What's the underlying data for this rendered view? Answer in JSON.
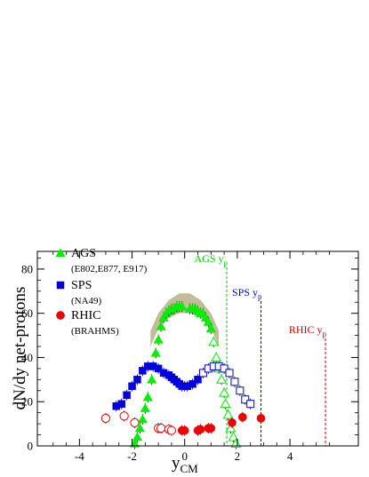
{
  "chart_data": {
    "type": "scatter",
    "xlabel_main": "y",
    "xlabel_sub": "CM",
    "ylabel": "dN/dy net-protons",
    "xlim": [
      -5.6,
      6.6
    ],
    "ylim": [
      0,
      88
    ],
    "xticks": [
      "-4",
      "-2",
      "0",
      "2",
      "4"
    ],
    "xtick_values": [
      -4,
      -2,
      0,
      2,
      4
    ],
    "yticks": [
      "0",
      "20",
      "40",
      "60",
      "80"
    ],
    "ytick_values": [
      0,
      20,
      40,
      60,
      80
    ],
    "legend": [
      {
        "name": "AGS",
        "sub": "(E802,E877, E917)",
        "color": "#00ee00",
        "marker": "triangle"
      },
      {
        "name": "SPS",
        "sub": "(NA49)",
        "color": "#0000dd",
        "marker": "square"
      },
      {
        "name": "RHIC",
        "sub": "(BRAHMS)",
        "color": "#ee0000",
        "marker": "circle"
      }
    ],
    "beam_lines": [
      {
        "label_main": "AGS y",
        "label_sub": "p",
        "x": 1.6,
        "color": "#00cc00"
      },
      {
        "label_main": "SPS y",
        "label_sub": "p",
        "x": 2.9,
        "color": "#0000cc"
      },
      {
        "label_main": "RHIC y",
        "label_sub": "p",
        "x": 5.35,
        "color": "#cc0000"
      }
    ],
    "ags_band": {
      "color": "#b8b08a",
      "upper": [
        [
          -1.3,
          52
        ],
        [
          -1.0,
          60
        ],
        [
          -0.6,
          66
        ],
        [
          -0.2,
          69
        ],
        [
          0.2,
          69
        ],
        [
          0.6,
          66
        ],
        [
          1.0,
          60
        ],
        [
          1.3,
          52
        ]
      ],
      "lower": [
        [
          -1.3,
          45
        ],
        [
          -1.0,
          53
        ],
        [
          -0.6,
          58
        ],
        [
          -0.2,
          60
        ],
        [
          0.2,
          60
        ],
        [
          0.6,
          58
        ],
        [
          1.0,
          53
        ],
        [
          1.3,
          45
        ]
      ]
    },
    "series": [
      {
        "name": "AGS",
        "color": "#00ee00",
        "marker": "triangle",
        "filled": true,
        "points": [
          [
            -1.9,
            1
          ],
          [
            -1.8,
            4
          ],
          [
            -1.7,
            8
          ],
          [
            -1.6,
            12
          ],
          [
            -1.5,
            17
          ],
          [
            -1.4,
            22
          ],
          [
            -1.25,
            30
          ],
          [
            -1.1,
            42
          ],
          [
            -1.0,
            48
          ],
          [
            -0.9,
            54
          ],
          [
            -0.8,
            58
          ],
          [
            -0.7,
            60
          ],
          [
            -0.6,
            61
          ],
          [
            -0.5,
            62
          ],
          [
            -0.4,
            62
          ],
          [
            -0.3,
            63
          ],
          [
            -0.2,
            63
          ],
          [
            -0.1,
            63
          ],
          [
            0.2,
            62
          ],
          [
            0.3,
            62
          ],
          [
            0.4,
            62
          ],
          [
            0.5,
            61
          ],
          [
            0.6,
            60
          ],
          [
            0.7,
            60
          ],
          [
            0.8,
            58
          ],
          [
            0.9,
            56
          ],
          [
            1.0,
            53
          ]
        ]
      },
      {
        "name": "AGS reflected",
        "color": "#00ee00",
        "marker": "triangle",
        "filled": false,
        "points": [
          [
            1.1,
            47
          ],
          [
            1.2,
            40
          ],
          [
            1.3,
            35
          ],
          [
            1.4,
            30
          ],
          [
            1.5,
            24
          ],
          [
            1.55,
            19
          ],
          [
            1.65,
            14
          ],
          [
            1.75,
            8
          ],
          [
            1.85,
            4
          ],
          [
            1.95,
            1
          ]
        ]
      },
      {
        "name": "SPS",
        "color": "#0000dd",
        "marker": "square",
        "filled": true,
        "points": [
          [
            -2.6,
            18
          ],
          [
            -2.4,
            19
          ],
          [
            -2.2,
            23
          ],
          [
            -2.0,
            27
          ],
          [
            -1.8,
            30
          ],
          [
            -1.6,
            34
          ],
          [
            -1.4,
            36
          ],
          [
            -1.2,
            36
          ],
          [
            -1.0,
            35
          ],
          [
            -0.8,
            33
          ],
          [
            -0.6,
            32
          ],
          [
            -0.5,
            31
          ],
          [
            -0.4,
            30
          ],
          [
            -0.3,
            29
          ],
          [
            -0.2,
            28
          ],
          [
            -0.1,
            27
          ],
          [
            0.0,
            27
          ],
          [
            0.1,
            27
          ],
          [
            0.3,
            28
          ],
          [
            0.5,
            30
          ]
        ]
      },
      {
        "name": "SPS reflected",
        "color": "#0000dd",
        "marker": "square",
        "filled": false,
        "points": [
          [
            0.7,
            33
          ],
          [
            0.9,
            35
          ],
          [
            1.1,
            36
          ],
          [
            1.3,
            36
          ],
          [
            1.5,
            35
          ],
          [
            1.7,
            33
          ],
          [
            1.9,
            29
          ],
          [
            2.1,
            25
          ],
          [
            2.3,
            21
          ],
          [
            2.5,
            19
          ]
        ]
      },
      {
        "name": "RHIC",
        "color": "#ee0000",
        "marker": "circle",
        "filled": true,
        "points": [
          [
            -0.1,
            7
          ],
          [
            0.0,
            7
          ],
          [
            0.5,
            7
          ],
          [
            0.6,
            7.5
          ],
          [
            0.9,
            8
          ],
          [
            1.0,
            8
          ],
          [
            1.8,
            10.5
          ],
          [
            2.2,
            13
          ],
          [
            2.9,
            12.5
          ]
        ]
      },
      {
        "name": "RHIC reflected",
        "color": "#ee0000",
        "marker": "circle",
        "filled": false,
        "points": [
          [
            -3.0,
            12.5
          ],
          [
            -2.3,
            13.5
          ],
          [
            -1.9,
            10.5
          ],
          [
            -1.0,
            8
          ],
          [
            -0.9,
            8
          ],
          [
            -0.6,
            7.5
          ],
          [
            -0.5,
            7
          ]
        ]
      }
    ]
  }
}
